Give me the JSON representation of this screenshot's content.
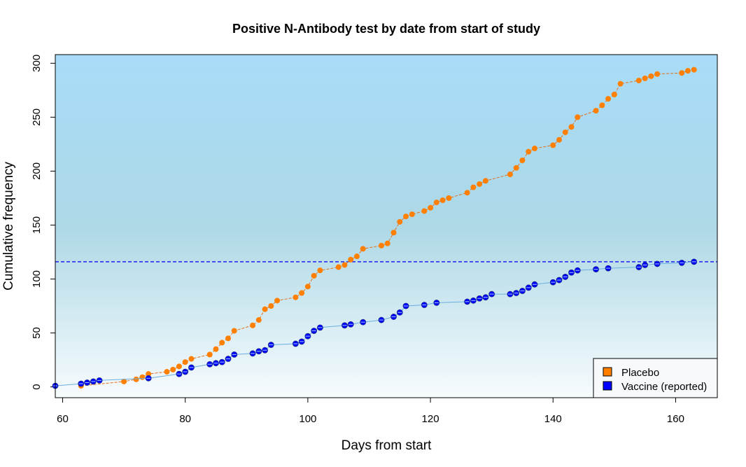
{
  "chart_data": {
    "type": "scatter",
    "title": "Positive N-Antibody test by date from start of study",
    "xlabel": "Days from start",
    "ylabel": "Cumulative frequency",
    "xlim": [
      58.8,
      166.8
    ],
    "ylim": [
      -10,
      308
    ],
    "xticks": [
      60,
      80,
      100,
      120,
      140,
      160
    ],
    "yticks": [
      0,
      50,
      100,
      150,
      200,
      250,
      300
    ],
    "reference_line": {
      "y": 116,
      "style": "dashed",
      "color": "#0000ff"
    },
    "legend": {
      "position": "bottom-right"
    },
    "colors": {
      "placebo_point": "#ff7f00",
      "placebo_line": "#e07020",
      "vaccine_point": "#0000ff",
      "vaccine_line": "#6aaee0",
      "background_top": "#a8dcf8",
      "background_mid": "#add8e6",
      "background_bottom": "#f7fbfd"
    },
    "series": [
      {
        "name": "Placebo",
        "x": [
          63,
          70,
          72,
          73,
          74,
          77,
          78,
          79,
          80,
          81,
          84,
          85,
          86,
          87,
          88,
          91,
          92,
          93,
          94,
          95,
          98,
          99,
          100,
          101,
          102,
          105,
          106,
          107,
          108,
          109,
          112,
          113,
          114,
          115,
          116,
          117,
          119,
          120,
          121,
          122,
          123,
          126,
          127,
          128,
          129,
          133,
          134,
          135,
          136,
          137,
          140,
          141,
          142,
          143,
          144,
          147,
          148,
          149,
          150,
          151,
          154,
          155,
          156,
          157,
          161,
          162,
          163
        ],
        "y": [
          1,
          5,
          7,
          9,
          12,
          14,
          16,
          19,
          23,
          26,
          30,
          35,
          41,
          45,
          52,
          57,
          62,
          72,
          75,
          80,
          83,
          87,
          93,
          103,
          108,
          111,
          113,
          118,
          121,
          128,
          131,
          133,
          143,
          153,
          158,
          160,
          163,
          166,
          171,
          173,
          175,
          180,
          185,
          188,
          191,
          197,
          203,
          210,
          218,
          221,
          224,
          229,
          236,
          241,
          250,
          256,
          261,
          267,
          271,
          281,
          284,
          286,
          288,
          290,
          291,
          293,
          294
        ]
      },
      {
        "name": "Vaccine (reported)",
        "x": [
          58.8,
          63,
          64,
          65,
          66,
          74,
          79,
          80,
          81,
          84,
          85,
          86,
          87,
          88,
          91,
          92,
          93,
          94,
          98,
          99,
          100,
          101,
          102,
          106,
          107,
          109,
          112,
          114,
          115,
          116,
          119,
          121,
          126,
          127,
          128,
          129,
          130,
          133,
          134,
          135,
          136,
          137,
          140,
          141,
          142,
          143,
          144,
          147,
          149,
          154,
          155,
          157,
          161,
          163
        ],
        "y": [
          1,
          3,
          4,
          5,
          6,
          8,
          12,
          14,
          18,
          21,
          22,
          23,
          26,
          30,
          31,
          33,
          34,
          39,
          40,
          42,
          47,
          52,
          55,
          57,
          58,
          60,
          62,
          65,
          69,
          75,
          76,
          78,
          79,
          80,
          82,
          83,
          86,
          86,
          87,
          89,
          92,
          95,
          97,
          99,
          102,
          106,
          108,
          109,
          110,
          111,
          113,
          114,
          115,
          116
        ]
      }
    ]
  }
}
